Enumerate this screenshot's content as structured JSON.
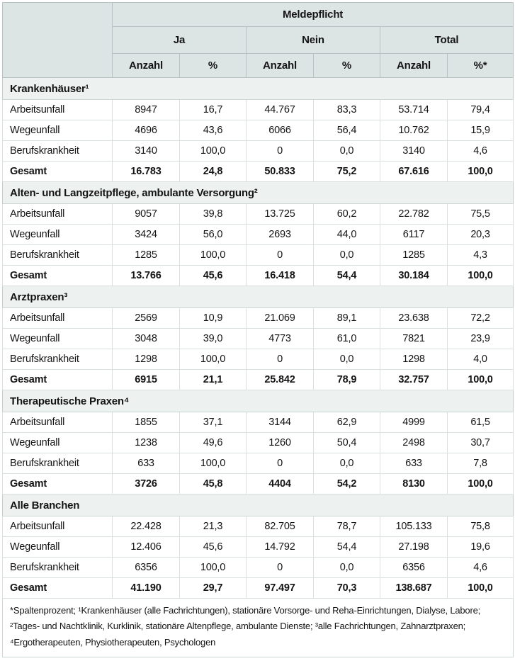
{
  "table": {
    "header": {
      "title": "Meldepflicht",
      "groups": [
        {
          "label": "Ja"
        },
        {
          "label": "Nein"
        },
        {
          "label": "Total"
        }
      ],
      "subcols": [
        "Anzahl",
        "%",
        "Anzahl",
        "%",
        "Anzahl",
        "%*"
      ]
    },
    "sections": [
      {
        "title": "Krankenhäuser¹",
        "rows": [
          {
            "label": "Arbeitsunfall",
            "bold": false,
            "values": [
              "8947",
              "16,7",
              "44.767",
              "83,3",
              "53.714",
              "79,4"
            ]
          },
          {
            "label": "Wegeunfall",
            "bold": false,
            "values": [
              "4696",
              "43,6",
              "6066",
              "56,4",
              "10.762",
              "15,9"
            ]
          },
          {
            "label": "Berufskrankheit",
            "bold": false,
            "values": [
              "3140",
              "100,0",
              "0",
              "0,0",
              "3140",
              "4,6"
            ]
          },
          {
            "label": "Gesamt",
            "bold": true,
            "values": [
              "16.783",
              "24,8",
              "50.833",
              "75,2",
              "67.616",
              "100,0"
            ]
          }
        ]
      },
      {
        "title": "Alten- und Langzeitpflege, ambulante Versorgung²",
        "rows": [
          {
            "label": "Arbeitsunfall",
            "bold": false,
            "values": [
              "9057",
              "39,8",
              "13.725",
              "60,2",
              "22.782",
              "75,5"
            ]
          },
          {
            "label": "Wegeunfall",
            "bold": false,
            "values": [
              "3424",
              "56,0",
              "2693",
              "44,0",
              "6117",
              "20,3"
            ]
          },
          {
            "label": "Berufskrankheit",
            "bold": false,
            "values": [
              "1285",
              "100,0",
              "0",
              "0,0",
              "1285",
              "4,3"
            ]
          },
          {
            "label": "Gesamt",
            "bold": true,
            "values": [
              "13.766",
              "45,6",
              "16.418",
              "54,4",
              "30.184",
              "100,0"
            ]
          }
        ]
      },
      {
        "title": "Arztpraxen³",
        "rows": [
          {
            "label": "Arbeitsunfall",
            "bold": false,
            "values": [
              "2569",
              "10,9",
              "21.069",
              "89,1",
              "23.638",
              "72,2"
            ]
          },
          {
            "label": "Wegeunfall",
            "bold": false,
            "values": [
              "3048",
              "39,0",
              "4773",
              "61,0",
              "7821",
              "23,9"
            ]
          },
          {
            "label": "Berufskrankheit",
            "bold": false,
            "values": [
              "1298",
              "100,0",
              "0",
              "0,0",
              "1298",
              "4,0"
            ]
          },
          {
            "label": "Gesamt",
            "bold": true,
            "values": [
              "6915",
              "21,1",
              "25.842",
              "78,9",
              "32.757",
              "100,0"
            ]
          }
        ]
      },
      {
        "title": "Therapeutische Praxen⁴",
        "rows": [
          {
            "label": "Arbeitsunfall",
            "bold": false,
            "values": [
              "1855",
              "37,1",
              "3144",
              "62,9",
              "4999",
              "61,5"
            ]
          },
          {
            "label": "Wegeunfall",
            "bold": false,
            "values": [
              "1238",
              "49,6",
              "1260",
              "50,4",
              "2498",
              "30,7"
            ]
          },
          {
            "label": "Berufskrankheit",
            "bold": false,
            "values": [
              "633",
              "100,0",
              "0",
              "0,0",
              "633",
              "7,8"
            ]
          },
          {
            "label": "Gesamt",
            "bold": true,
            "values": [
              "3726",
              "45,8",
              "4404",
              "54,2",
              "8130",
              "100,0"
            ]
          }
        ]
      },
      {
        "title": "Alle Branchen",
        "rows": [
          {
            "label": "Arbeitsunfall",
            "bold": false,
            "values": [
              "22.428",
              "21,3",
              "82.705",
              "78,7",
              "105.133",
              "75,8"
            ]
          },
          {
            "label": "Wegeunfall",
            "bold": false,
            "values": [
              "12.406",
              "45,6",
              "14.792",
              "54,4",
              "27.198",
              "19,6"
            ]
          },
          {
            "label": "Berufskrankheit",
            "bold": false,
            "values": [
              "6356",
              "100,0",
              "0",
              "0,0",
              "6356",
              "4,6"
            ]
          },
          {
            "label": "Gesamt",
            "bold": true,
            "values": [
              "41.190",
              "29,7",
              "97.497",
              "70,3",
              "138.687",
              "100,0"
            ]
          }
        ]
      }
    ],
    "footnote": "*Spaltenprozent; ¹Krankenhäuser (alle Fachrichtungen), stationäre Vorsorge- und Reha-Einrichtungen, Dialyse, Labore; ²Tages- und Nachtklinik, Kurklinik, stationäre Altenpflege, ambulante Dienste; ³alle Fachrichtungen, Zahnarztpraxen; ⁴Ergotherapeuten, Physiotherapeuten, Psychologen"
  },
  "colors": {
    "header_bg": "#dde5e4",
    "section_bg": "#edf1f0",
    "header_border": "#b6c3c2",
    "data_border": "#d9e0df",
    "text": "#141414"
  }
}
